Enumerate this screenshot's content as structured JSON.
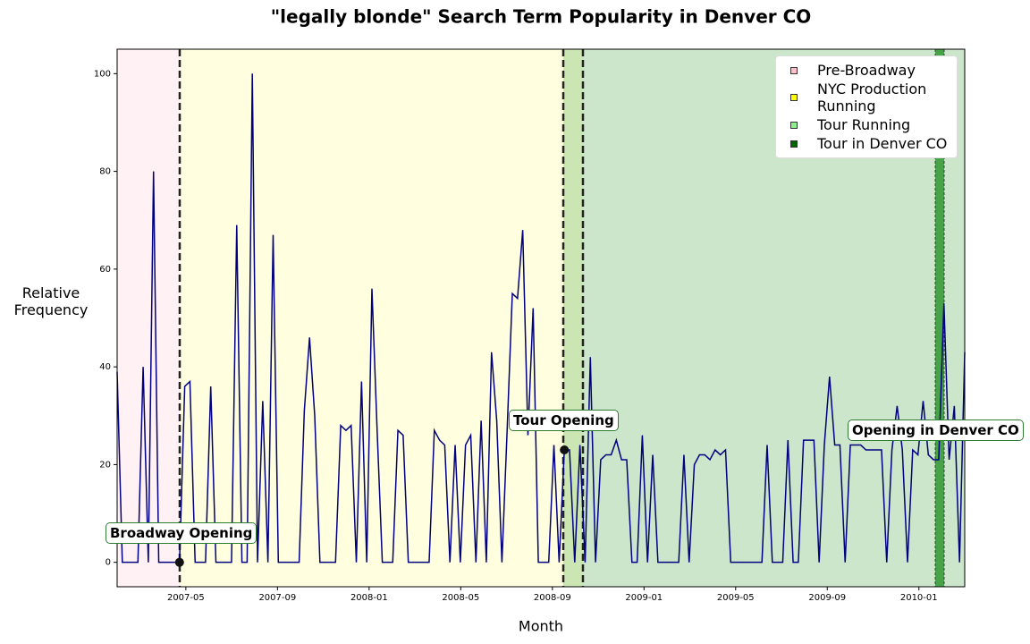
{
  "chart_data": {
    "type": "line",
    "title": "\"legally blonde\" Search Term Popularity in Denver CO",
    "x_label": "Month",
    "y_label": "Relative Frequency",
    "xlim": [
      "2007-02",
      "2010-03"
    ],
    "xticks": [
      "2007-05",
      "2007-09",
      "2008-01",
      "2008-05",
      "2008-09",
      "2009-01",
      "2009-05",
      "2009-09",
      "2010-01"
    ],
    "ylim": [
      -5,
      105
    ],
    "yticks": [
      0,
      20,
      40,
      60,
      80,
      100
    ],
    "grid": false,
    "legend_location": "upper right",
    "legend": [
      {
        "name": "Pre-Broadway",
        "color": "#ffc0cb"
      },
      {
        "name": "NYC Production Running",
        "color": "#ffff00"
      },
      {
        "name": "Tour Running",
        "color": "#90ee90"
      },
      {
        "name": "Tour in Denver CO",
        "color": "#006400"
      }
    ],
    "annotations": [
      "Broadway Opening",
      "Tour Opening",
      "Opening in Denver CO"
    ],
    "series": [
      {
        "color": "#000080",
        "values": [
          39,
          0,
          0,
          0,
          0,
          40,
          0,
          80,
          0,
          0,
          0,
          0,
          0,
          36,
          37,
          0,
          0,
          0,
          36,
          0,
          0,
          0,
          0,
          69,
          0,
          0,
          100,
          0,
          33,
          0,
          67,
          0,
          0,
          0,
          0,
          0,
          31,
          46,
          30,
          0,
          0,
          0,
          0,
          28,
          27,
          28,
          0,
          37,
          0,
          56,
          27,
          0,
          0,
          0,
          27,
          26,
          0,
          0,
          0,
          0,
          0,
          27,
          25,
          24,
          0,
          24,
          0,
          24,
          26,
          0,
          29,
          0,
          43,
          29,
          0,
          27,
          55,
          54,
          68,
          26,
          52,
          0,
          0,
          0,
          24,
          0,
          23,
          23,
          0,
          24,
          0,
          42,
          0,
          21,
          22,
          22,
          25,
          21,
          21,
          0,
          0,
          26,
          0,
          22,
          0,
          0,
          0,
          0,
          0,
          22,
          0,
          20,
          22,
          22,
          21,
          23,
          22,
          23,
          0,
          0,
          0,
          0,
          0,
          0,
          0,
          24,
          0,
          0,
          0,
          25,
          0,
          0,
          25,
          25,
          25,
          0,
          24,
          38,
          24,
          24,
          0,
          24,
          24,
          24,
          23,
          23,
          23,
          23,
          0,
          23,
          32,
          23,
          0,
          23,
          22,
          33,
          22,
          21,
          21,
          53,
          21,
          32,
          0,
          43
        ]
      }
    ]
  }
}
